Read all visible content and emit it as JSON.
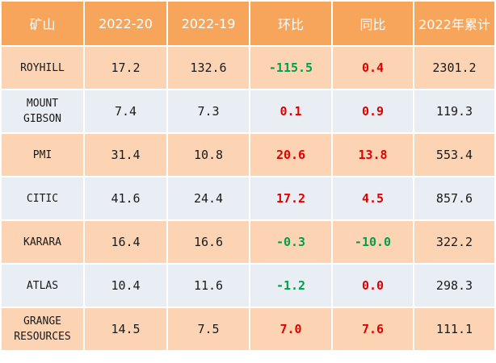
{
  "headers": [
    "矿山",
    "2022-20",
    "2022-19",
    "环比",
    "同比",
    "2022年累计"
  ],
  "rows": [
    {
      "mine": "ROYHILL",
      "w20": "17.2",
      "w19": "132.6",
      "mom": "-115.5",
      "yoy": "0.4",
      "ytd": "2301.2"
    },
    {
      "mine": "MOUNT\nGIBSON",
      "w20": "7.4",
      "w19": "7.3",
      "mom": "0.1",
      "yoy": "0.9",
      "ytd": "119.3"
    },
    {
      "mine": "PMI",
      "w20": "31.4",
      "w19": "10.8",
      "mom": "20.6",
      "yoy": "13.8",
      "ytd": "553.4"
    },
    {
      "mine": "CITIC",
      "w20": "41.6",
      "w19": "24.4",
      "mom": "17.2",
      "yoy": "4.5",
      "ytd": "857.6"
    },
    {
      "mine": "KARARA",
      "w20": "16.4",
      "w19": "16.6",
      "mom": "-0.3",
      "yoy": "-10.0",
      "ytd": "322.2"
    },
    {
      "mine": "ATLAS",
      "w20": "10.4",
      "w19": "11.6",
      "mom": "-1.2",
      "yoy": "0.0",
      "ytd": "298.3"
    },
    {
      "mine": "GRANGE\nRESOURCES",
      "w20": "14.5",
      "w19": "7.5",
      "mom": "7.0",
      "yoy": "7.6",
      "ytd": "111.1"
    }
  ],
  "colors": {
    "header_bg": "#f7a55b",
    "row_odd_bg": "#fcd4b4",
    "row_even_bg": "#e9edf4",
    "positive": "#e00000",
    "negative": "#00a04a"
  }
}
